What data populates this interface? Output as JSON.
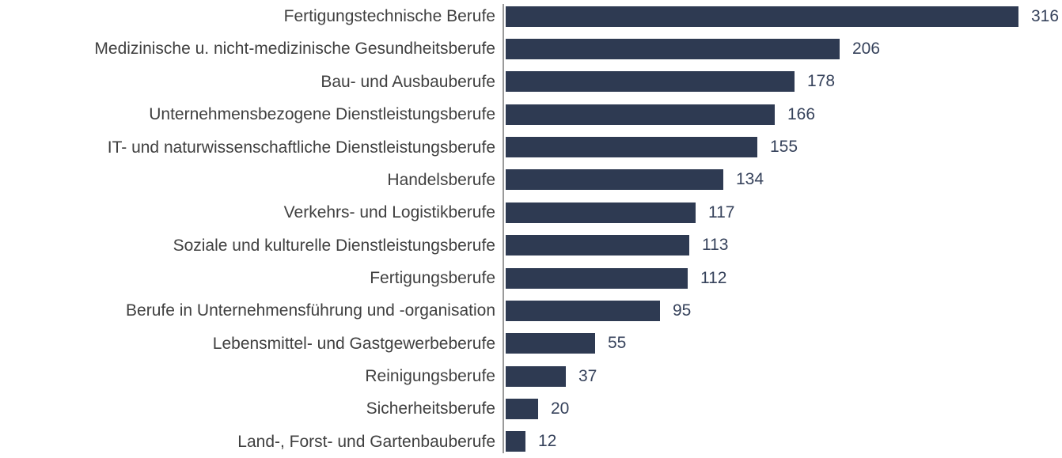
{
  "chart_data": {
    "type": "bar",
    "orientation": "horizontal",
    "title": "",
    "xlabel": "",
    "ylabel": "",
    "grid": false,
    "legend": false,
    "xlim": [
      0,
      330
    ],
    "sorted": "descending",
    "categories": [
      "Fertigungstechnische Berufe",
      "Medizinische u. nicht-medizinische Gesundheitsberufe",
      "Bau- und Ausbauberufe",
      "Unternehmensbezogene Dienstleistungsberufe",
      "IT- und naturwissenschaftliche Dienstleistungsberufe",
      "Handelsberufe",
      "Verkehrs- und Logistikberufe",
      "Soziale und kulturelle Dienstleistungsberufe",
      "Fertigungsberufe",
      "Berufe in Unternehmensführung und -organisation",
      "Lebensmittel- und Gastgewerbeberufe",
      "Reinigungsberufe",
      "Sicherheitsberufe",
      "Land-, Forst- und Gartenbauberufe"
    ],
    "values": [
      316,
      206,
      178,
      166,
      155,
      134,
      117,
      113,
      112,
      95,
      55,
      37,
      20,
      12
    ],
    "max_value": 316,
    "colors": {
      "bar": "#2e3a52",
      "axis_line": "#9a9a9a",
      "category_label": "#404040",
      "value_label": "#36425b",
      "background": "#ffffff"
    }
  }
}
